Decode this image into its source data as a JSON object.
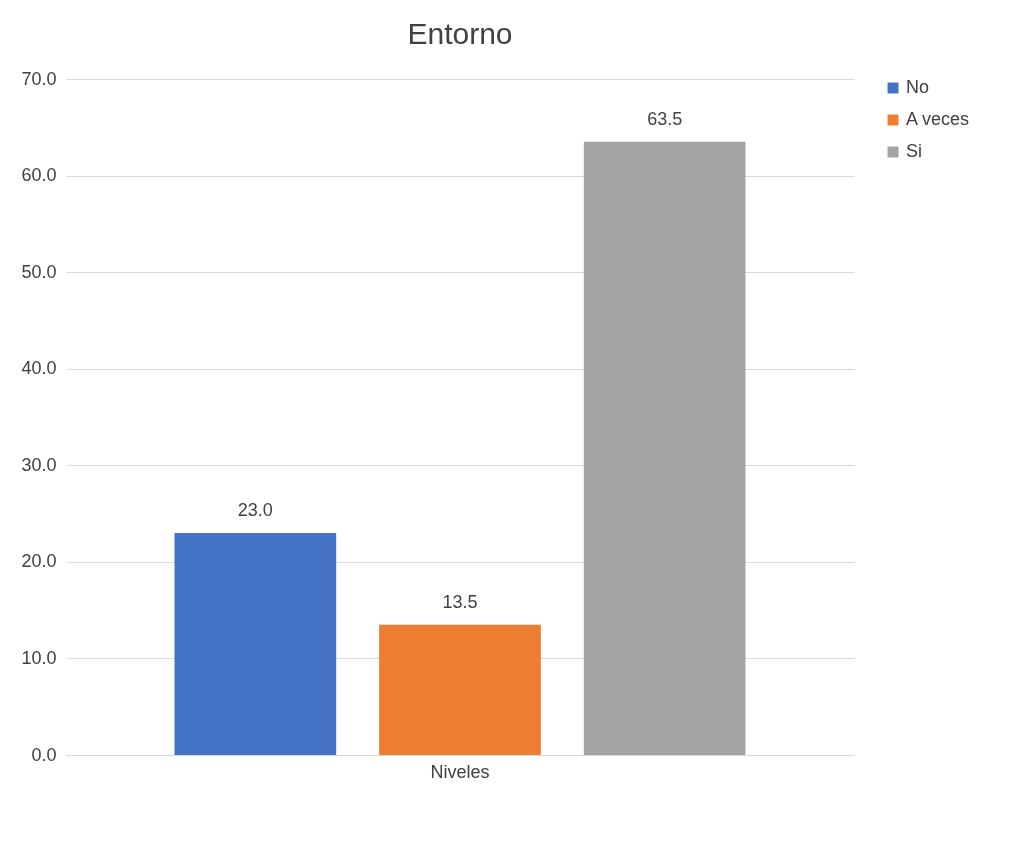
{
  "chart_data": {
    "type": "bar",
    "title": "Entorno",
    "categories": [
      "Niveles"
    ],
    "series": [
      {
        "name": "No",
        "color": "#4472c4",
        "values": [
          23.0
        ],
        "value_labels": [
          "23.0"
        ]
      },
      {
        "name": "A veces",
        "color": "#ed7d31",
        "values": [
          13.5
        ],
        "value_labels": [
          "13.5"
        ]
      },
      {
        "name": "Si",
        "color": "#a5a5a5",
        "values": [
          63.5
        ],
        "value_labels": [
          "63.5"
        ]
      }
    ],
    "ylim": [
      0,
      70
    ],
    "yticks": [
      {
        "value": 0,
        "label": "0.0"
      },
      {
        "value": 10,
        "label": "10.0"
      },
      {
        "value": 20,
        "label": "20.0"
      },
      {
        "value": 30,
        "label": "30.0"
      },
      {
        "value": 40,
        "label": "40.0"
      },
      {
        "value": 50,
        "label": "50.0"
      },
      {
        "value": 60,
        "label": "60.0"
      },
      {
        "value": 70,
        "label": "70.0"
      }
    ],
    "grid": "y",
    "legend": "right"
  }
}
